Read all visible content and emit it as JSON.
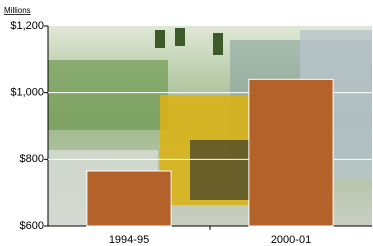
{
  "chart_data": {
    "type": "bar",
    "y_label": "Millions",
    "categories": [
      "1994-95",
      "2000-01"
    ],
    "values": [
      765,
      1040
    ],
    "color": "#b5622a",
    "ylim": [
      600,
      1200
    ],
    "yticks": [
      {
        "value": 600,
        "label": "$600"
      },
      {
        "value": 800,
        "label": "$800"
      },
      {
        "value": 1000,
        "label": "$1,000"
      },
      {
        "value": 1200,
        "label": "$1,200"
      }
    ],
    "grid": true
  }
}
